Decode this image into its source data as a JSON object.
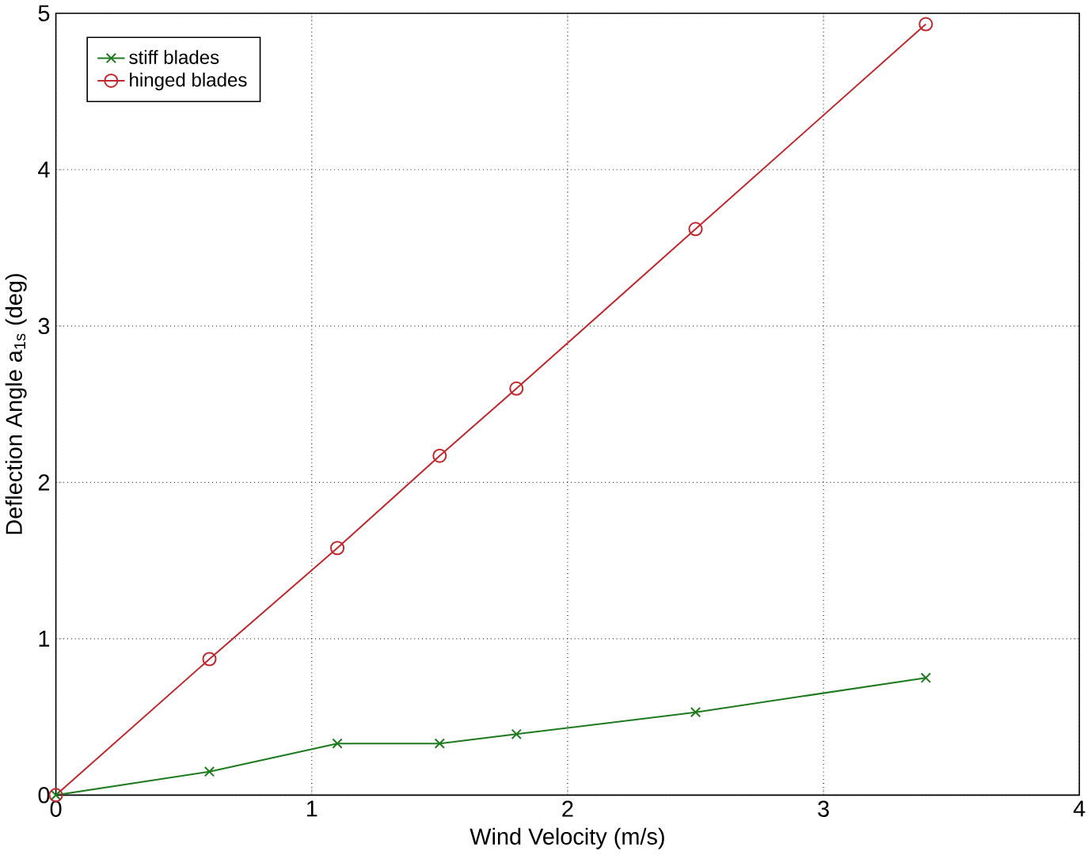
{
  "chart_data": {
    "type": "line",
    "xlabel": "Wind Velocity (m/s)",
    "ylabel": "Deflection Angle a$_{1s}$ (deg)",
    "xlim": [
      0,
      4
    ],
    "ylim": [
      0,
      5
    ],
    "xticks": [
      0,
      1,
      2,
      3,
      4
    ],
    "yticks": [
      0,
      1,
      2,
      3,
      4,
      5
    ],
    "grid": true,
    "legend": "top left",
    "line_style": "solid",
    "series": [
      {
        "name": "stiff blades",
        "color": "#1e7a1e",
        "marker": "cross",
        "x": [
          0,
          0.6,
          1.1,
          1.5,
          1.8,
          2.5,
          3.4
        ],
        "values": [
          0,
          0.15,
          0.33,
          0.33,
          0.39,
          0.53,
          0.75
        ]
      },
      {
        "name": "hinged blades",
        "color": "#c0282d",
        "marker": "circle",
        "x": [
          0,
          0.6,
          1.1,
          1.5,
          1.8,
          2.5,
          3.4
        ],
        "values": [
          0,
          0.87,
          1.58,
          2.17,
          2.6,
          3.62,
          4.93
        ]
      }
    ]
  }
}
